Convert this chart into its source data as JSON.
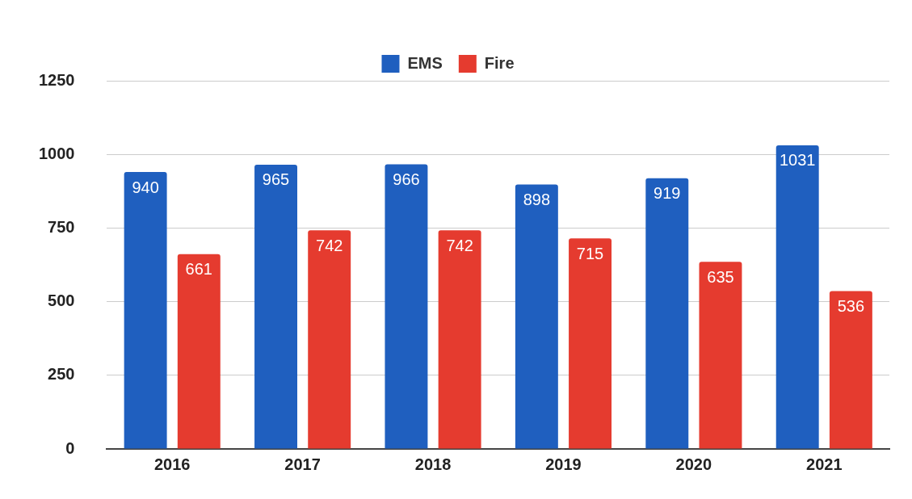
{
  "chart_data": {
    "type": "bar",
    "categories": [
      "2016",
      "2017",
      "2018",
      "2019",
      "2020",
      "2021"
    ],
    "series": [
      {
        "name": "EMS",
        "color": "#1f5fbf",
        "values": [
          940,
          965,
          966,
          898,
          919,
          1031
        ]
      },
      {
        "name": "Fire",
        "color": "#e53b2f",
        "values": [
          661,
          742,
          742,
          715,
          635,
          536
        ]
      }
    ],
    "ylim": [
      0,
      1250
    ],
    "yticks": [
      0,
      250,
      500,
      750,
      1000,
      1250
    ],
    "grid": "y",
    "legend": "top",
    "data_labels": true
  }
}
